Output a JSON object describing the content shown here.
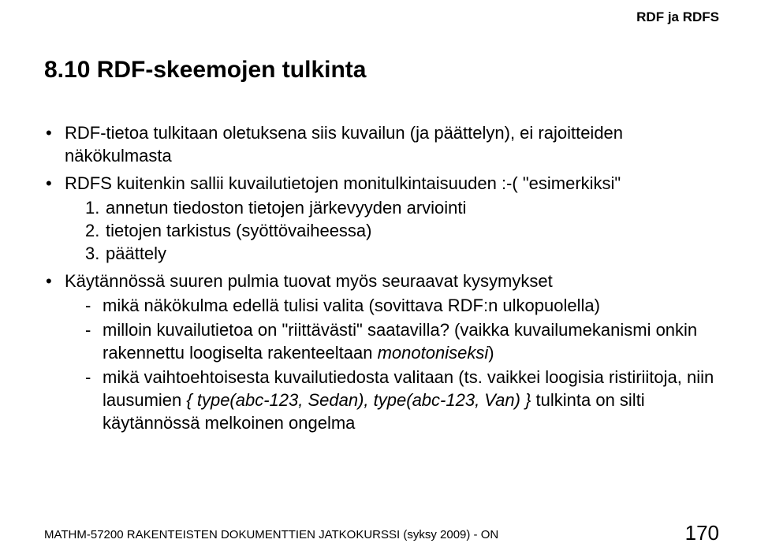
{
  "header": {
    "right": "RDF ja RDFS"
  },
  "title": "8.10 RDF-skeemojen tulkinta",
  "bullets": [
    {
      "text": "RDF-tietoa tulkitaan oletuksena siis kuvailun (ja päättelyn), ei rajoitteiden näkökulmasta"
    },
    {
      "text": "RDFS kuitenkin sallii kuvailutietojen monitulkintaisuuden :-( \"esimerkiksi\"",
      "numbered": [
        "annetun tiedoston tietojen järkevyyden arviointi",
        "tietojen tarkistus (syöttövaiheessa)",
        "päättely"
      ]
    },
    {
      "text": "Käytännössä suuren pulmia tuovat myös seuraavat kysymykset",
      "dashed": [
        {
          "pre": "mikä näkökulma edellä tulisi valita (sovittava RDF:n ulkopuolella)"
        },
        {
          "pre": "milloin kuvailutietoa on \"riittävästi\" saatavilla? (vaikka kuvailumekanismi onkin rakennettu loogiselta rakenteeltaan ",
          "italic": "monotoniseksi",
          "post": ")"
        },
        {
          "pre": "mikä vaihtoehtoisesta kuvailutiedosta valitaan (ts. vaikkei loogisia ristiriitoja, niin lausumien ",
          "italic": "{ type(abc-123, Sedan), type(abc-123, Van) }",
          "post": " tulkinta on silti käytännössä melkoinen ongelma"
        }
      ]
    }
  ],
  "footer": {
    "text": "MATHM-57200 RAKENTEISTEN DOKUMENTTIEN JATKOKURSSI (syksy 2009) - ON",
    "page": "170"
  },
  "colors": {
    "text": "#000000",
    "background": "#ffffff"
  },
  "typography": {
    "title_fontsize": 30,
    "body_fontsize": 22,
    "header_fontsize": 17,
    "footer_fontsize": 15,
    "pagenum_fontsize": 26
  }
}
